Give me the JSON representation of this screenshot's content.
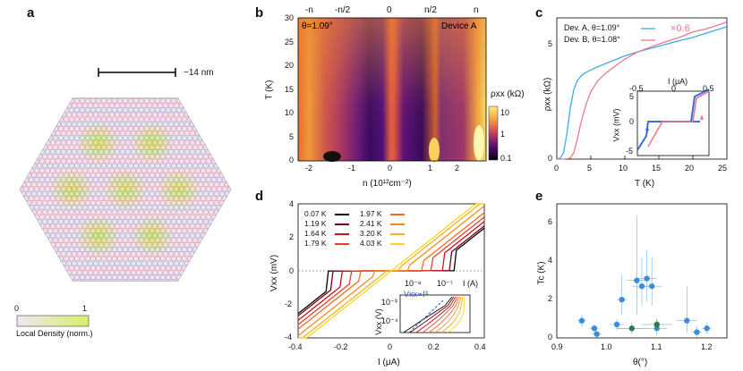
{
  "panels": {
    "a": {
      "letter": "a",
      "scale_label": "~14 nm",
      "colorbar": {
        "min": "0",
        "max": "1",
        "label": "Local Density (norm.)"
      },
      "colors": {
        "low": "#f0e6f0",
        "high": "#d6f06a",
        "lattice_a": "#d4567e",
        "lattice_b": "#4a7fc0"
      }
    },
    "b": {
      "letter": "b",
      "top_ticks": [
        "-n",
        "-n/2",
        "0",
        "n/2",
        "n"
      ],
      "top_tick_sub": "s",
      "theta_label": "θ=1.09°",
      "device_label": "Device A",
      "ylabel": "T (K)",
      "xlabel": "n (10¹²cm⁻²)",
      "cbar_label": "ρxx (kΩ)",
      "cbar_ticks": [
        "10",
        "1",
        "0.1"
      ],
      "xticks": [
        "-2",
        "-1",
        "0",
        "1",
        "2"
      ],
      "yticks": [
        "0",
        "5",
        "10",
        "15",
        "20",
        "25",
        "30"
      ]
    },
    "c": {
      "letter": "c",
      "legend": [
        {
          "label": "Dev. A, θ=1.09°",
          "color": "#3aaee6"
        },
        {
          "label": "Dev. B, θ=1.08°",
          "color": "#f07890"
        }
      ],
      "scale_note": "×0.6",
      "ylabel": "ρxx (kΩ)",
      "xlabel": "T (K)",
      "xticks": [
        "0",
        "5",
        "10",
        "15",
        "20",
        "25"
      ],
      "yticks": [
        "0",
        "5"
      ],
      "inset": {
        "xlabel": "I (μA)",
        "ylabel": "Vxx (mV)",
        "xticks": [
          "-0.5",
          "0",
          "0.5"
        ],
        "yticks": [
          "5",
          "0",
          "-5"
        ]
      }
    },
    "d": {
      "letter": "d",
      "ylabel": "Vxx (mV)",
      "xlabel": "I (μA)",
      "xticks": [
        "-0.4",
        "-0.2",
        "0",
        "0.2",
        "0.4"
      ],
      "yticks": [
        "4",
        "2",
        "0",
        "-2",
        "-4"
      ],
      "legend": [
        {
          "label": "0.07 K",
          "color": "#000000"
        },
        {
          "label": "1.19 K",
          "color": "#7a0010"
        },
        {
          "label": "1.64 K",
          "color": "#c8101e"
        },
        {
          "label": "1.79 K",
          "color": "#e8402a"
        },
        {
          "label": "1.97 K",
          "color": "#f06a20"
        },
        {
          "label": "2.41 K",
          "color": "#f58c1a"
        },
        {
          "label": "3.20 K",
          "color": "#f8b020"
        },
        {
          "label": "4.03 K",
          "color": "#f5d820"
        }
      ],
      "inset": {
        "xlabel": "I (A)",
        "ylabel": "Vxx (V)",
        "xticks": [
          "10⁻⁸",
          "10⁻⁷"
        ],
        "yticks": [
          "10⁻³",
          "10⁻⁴"
        ],
        "fit_label": "Vxx∝I³"
      }
    },
    "e": {
      "letter": "e",
      "ylabel": "Tc (K)",
      "xlabel": "θ(°)",
      "xticks": [
        "0.9",
        "1.0",
        "1.1",
        "1.2"
      ],
      "yticks": [
        "0",
        "2",
        "4",
        "6"
      ]
    }
  },
  "chart_data": [
    {
      "type": "line",
      "panel": "c",
      "xlabel": "T (K)",
      "ylabel": "ρxx (kΩ)",
      "xlim": [
        0,
        25
      ],
      "ylim": [
        0,
        6.5
      ],
      "series": [
        {
          "name": "Dev. A, θ=1.09°",
          "x": [
            0,
            0.5,
            1.0,
            1.5,
            2.0,
            2.5,
            3.0,
            3.5,
            4.0,
            5,
            6,
            8,
            10,
            12,
            15,
            18,
            20,
            22,
            24,
            25
          ],
          "y": [
            0,
            0.05,
            0.3,
            1.2,
            2.4,
            3.2,
            3.6,
            3.8,
            3.95,
            4.1,
            4.25,
            4.5,
            4.75,
            4.95,
            5.2,
            5.45,
            5.6,
            5.8,
            6.0,
            6.1
          ]
        },
        {
          "name": "Dev. B, θ=1.08°",
          "x": [
            0,
            1,
            2,
            2.5,
            3,
            3.5,
            4,
            4.5,
            5,
            6,
            7,
            8,
            10,
            12,
            15,
            18,
            20,
            22,
            24,
            25
          ],
          "y": [
            0,
            0,
            0.05,
            0.3,
            0.9,
            1.6,
            2.2,
            2.7,
            3.1,
            3.6,
            3.9,
            4.15,
            4.6,
            4.95,
            5.3,
            5.6,
            5.85,
            6.0,
            6.2,
            6.3
          ]
        }
      ]
    },
    {
      "type": "scatter",
      "panel": "e",
      "xlabel": "θ(°)",
      "ylabel": "Tc (K)",
      "xlim": [
        0.9,
        1.24
      ],
      "ylim": [
        0,
        7
      ],
      "series": [
        {
          "name": "",
          "color": "#3a8ede",
          "x": [
            0.95,
            0.975,
            0.98,
            1.02,
            1.03,
            1.06,
            1.07,
            1.08,
            1.09,
            1.1,
            1.16,
            1.18,
            1.2
          ],
          "y": [
            0.9,
            0.5,
            0.2,
            0.7,
            2.0,
            3.0,
            2.7,
            3.1,
            2.7,
            0.5,
            0.9,
            0.3,
            0.5
          ],
          "yerr_up": [
            0.3,
            0.2,
            0.2,
            0.3,
            1.3,
            3.4,
            1.5,
            1.5,
            1.5,
            0.5,
            1.8,
            0.3,
            0.3
          ],
          "yerr_dn": [
            0.3,
            0.2,
            0.2,
            0.3,
            0.8,
            1.8,
            1.0,
            1.2,
            1.0,
            0.4,
            0.6,
            0.3,
            0.3
          ],
          "xerr": [
            0.01,
            0.01,
            0.01,
            0.015,
            0.01,
            0.02,
            0.02,
            0.02,
            0.02,
            0.02,
            0.02,
            0.01,
            0.01
          ]
        },
        {
          "name": "",
          "color": "#2a7a4a",
          "x": [
            1.05,
            1.1
          ],
          "y": [
            0.5,
            0.7
          ],
          "yerr_up": [
            0.3,
            0.3
          ],
          "yerr_dn": [
            0.3,
            0.3
          ],
          "xerr": [
            0.03,
            0.03
          ]
        }
      ]
    },
    {
      "type": "line",
      "panel": "d",
      "xlabel": "I (μA)",
      "ylabel": "Vxx (mV)",
      "xlim": [
        -0.4,
        0.4
      ],
      "ylim": [
        -4,
        4
      ],
      "series": [
        {
          "name": "0.07 K",
          "ic": 0.28
        },
        {
          "name": "1.19 K",
          "ic": 0.26
        },
        {
          "name": "1.64 K",
          "ic": 0.22
        },
        {
          "name": "1.79 K",
          "ic": 0.18
        },
        {
          "name": "1.97 K",
          "ic": 0.14
        },
        {
          "name": "2.41 K",
          "ic": 0.08
        },
        {
          "name": "3.20 K",
          "ic": 0.03
        },
        {
          "name": "4.03 K",
          "ic": 0.0
        }
      ]
    }
  ]
}
